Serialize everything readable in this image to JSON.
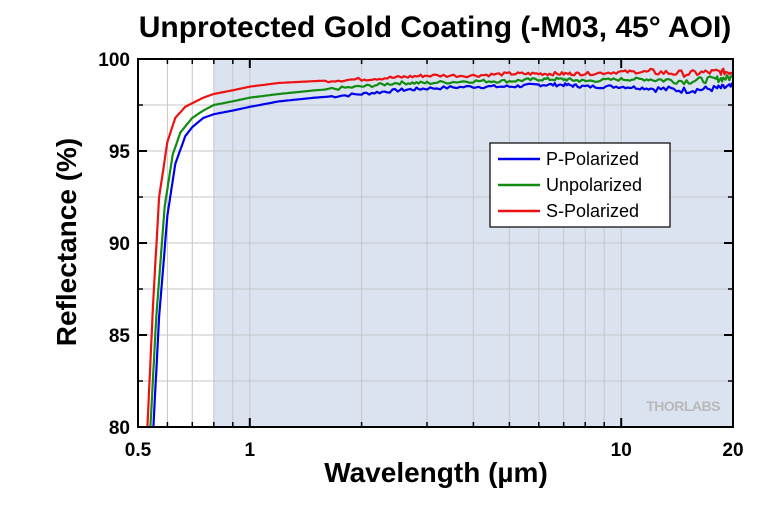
{
  "chart_data": {
    "type": "line",
    "title": "Unprotected Gold Coating (-M03, 45° AOI)",
    "xlabel": "Wavelength (µm)",
    "ylabel": "Reflectance (%)",
    "xscale": "log",
    "xlim": [
      0.5,
      20
    ],
    "ylim": [
      80,
      100
    ],
    "x_ticks": [
      0.5,
      1,
      10,
      20
    ],
    "x_tick_labels": [
      "0.5",
      "1",
      "10",
      "20"
    ],
    "y_ticks": [
      80,
      85,
      90,
      95,
      100
    ],
    "y_tick_labels": [
      "80",
      "85",
      "90",
      "95",
      "100"
    ],
    "grid": true,
    "shaded_region": [
      0.8,
      20
    ],
    "shaded_color": "#dbe3f1",
    "legend_position": "center-right",
    "watermark": "THORLABS",
    "series": [
      {
        "name": "P-Polarized",
        "color": "#0000ee",
        "x": [
          0.55,
          0.57,
          0.6,
          0.63,
          0.67,
          0.7,
          0.75,
          0.8,
          0.9,
          1.0,
          1.2,
          1.5,
          2.0,
          2.5,
          3.0,
          4.0,
          5.0,
          6.0,
          7.0,
          8.0,
          10.0,
          12.0,
          15.0,
          18.0,
          20.0
        ],
        "y": [
          80.0,
          86.0,
          91.5,
          94.3,
          95.8,
          96.3,
          96.8,
          97.0,
          97.2,
          97.4,
          97.7,
          97.9,
          98.1,
          98.3,
          98.4,
          98.5,
          98.5,
          98.6,
          98.6,
          98.5,
          98.5,
          98.4,
          98.3,
          98.4,
          98.5
        ]
      },
      {
        "name": "Unpolarized",
        "color": "#118c11",
        "x": [
          0.54,
          0.56,
          0.59,
          0.62,
          0.65,
          0.7,
          0.75,
          0.8,
          0.9,
          1.0,
          1.2,
          1.5,
          2.0,
          2.5,
          3.0,
          4.0,
          5.0,
          6.0,
          7.0,
          8.0,
          10.0,
          12.0,
          15.0,
          18.0,
          20.0
        ],
        "y": [
          80.0,
          86.0,
          92.0,
          94.8,
          96.0,
          96.8,
          97.2,
          97.5,
          97.7,
          97.9,
          98.1,
          98.3,
          98.5,
          98.7,
          98.7,
          98.8,
          98.8,
          98.9,
          98.9,
          98.8,
          98.9,
          98.9,
          98.8,
          98.9,
          99.0
        ]
      },
      {
        "name": "S-Polarized",
        "color": "#ee1111",
        "x": [
          0.53,
          0.55,
          0.57,
          0.6,
          0.63,
          0.67,
          0.7,
          0.75,
          0.8,
          0.9,
          1.0,
          1.2,
          1.5,
          2.0,
          2.5,
          3.0,
          4.0,
          5.0,
          6.0,
          7.0,
          8.0,
          10.0,
          12.0,
          15.0,
          18.0,
          20.0
        ],
        "y": [
          80.0,
          87.0,
          92.5,
          95.5,
          96.8,
          97.4,
          97.6,
          97.9,
          98.1,
          98.3,
          98.5,
          98.7,
          98.8,
          98.9,
          99.0,
          99.1,
          99.1,
          99.2,
          99.2,
          99.2,
          99.2,
          99.3,
          99.3,
          99.2,
          99.3,
          99.3
        ]
      }
    ]
  }
}
